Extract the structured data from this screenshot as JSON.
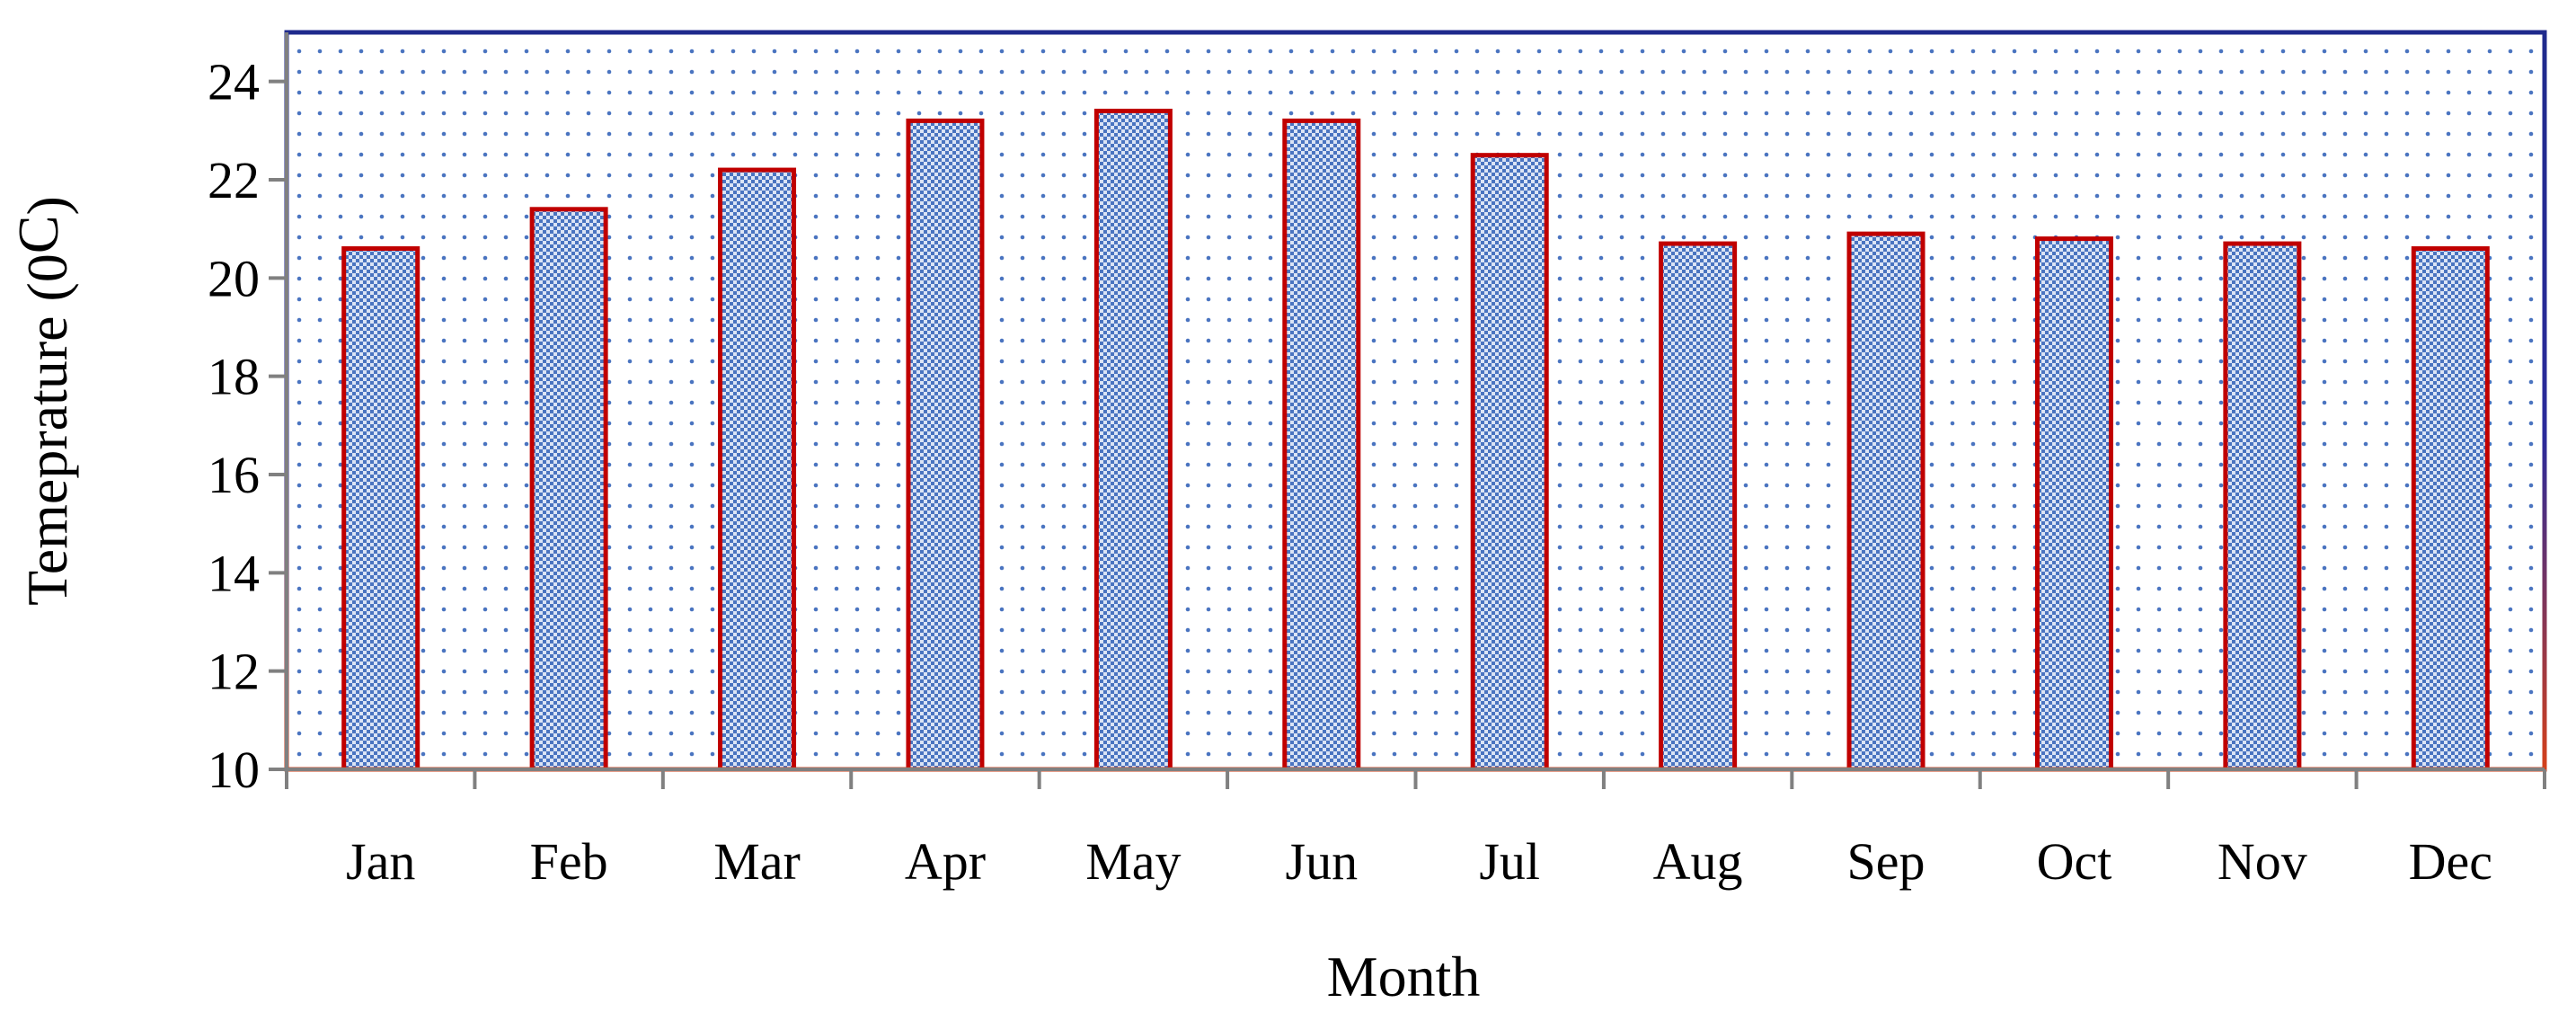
{
  "chart_data": {
    "type": "bar",
    "title": "",
    "xlabel": "Month",
    "ylabel": "Temeprature (0C)",
    "ylabel_parts": {
      "text": "Temeprature (",
      "zero": "0",
      "unit": "C",
      "close": ")"
    },
    "categories": [
      "Jan",
      "Feb",
      "Mar",
      "Apr",
      "May",
      "Jun",
      "Jul",
      "Aug",
      "Sep",
      "Oct",
      "Nov",
      "Dec"
    ],
    "values": [
      20.6,
      21.4,
      22.2,
      23.2,
      23.4,
      23.2,
      22.5,
      20.7,
      20.9,
      20.8,
      20.7,
      20.6
    ],
    "ylim": [
      10,
      25
    ],
    "yticks": [
      10,
      12,
      14,
      16,
      18,
      20,
      22,
      24
    ],
    "grid": false,
    "legend": "none",
    "colors": {
      "bar_fill": "#4a74c0",
      "bar_pattern_light": "#dbe4f5",
      "bar_outline": "#c00000",
      "plot_border": "#1f2a8c",
      "plot_dots": "#4a74c0",
      "axis": "#808080"
    }
  }
}
